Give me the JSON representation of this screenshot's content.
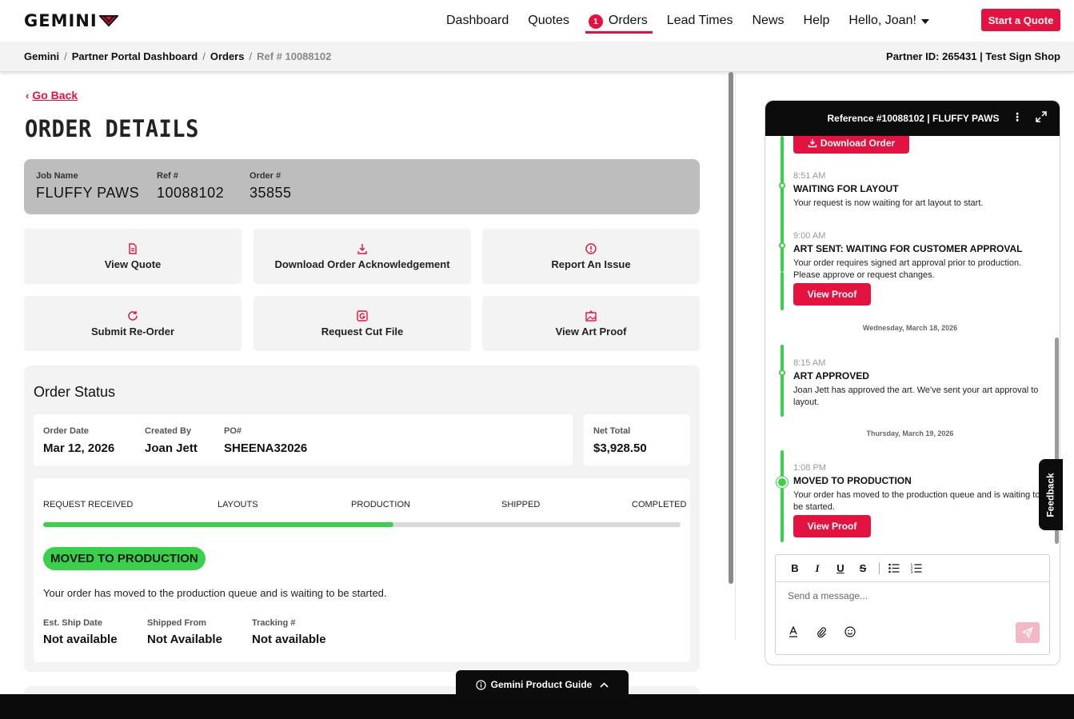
{
  "brand": {
    "name": "GEMINI",
    "accent": "#e4123f",
    "success": "#3bd04a"
  },
  "nav": {
    "links": [
      {
        "label": "Dashboard"
      },
      {
        "label": "Quotes"
      },
      {
        "label": "Orders",
        "badge": "1"
      },
      {
        "label": "Lead Times"
      },
      {
        "label": "News"
      },
      {
        "label": "Help"
      }
    ],
    "greeting": "Hello, Joan!",
    "cta": "Start a Quote"
  },
  "breadcrumb": {
    "items": [
      "Gemini",
      "Partner Portal Dashboard",
      "Orders",
      "Ref # 10088102"
    ],
    "partner": "Partner ID: 265431 | Test Sign Shop"
  },
  "page": {
    "back": "Go Back",
    "title": "Order Details"
  },
  "job": {
    "name_label": "Job Name",
    "name": "FLUFFY PAWS",
    "ref_label": "Ref #",
    "ref": "10088102",
    "order_label": "Order #",
    "order": "35855"
  },
  "actions": [
    {
      "label": "View Quote",
      "icon": "document-icon"
    },
    {
      "label": "Download Order Acknowledgement",
      "icon": "download-icon"
    },
    {
      "label": "Report An Issue",
      "icon": "alert-icon"
    },
    {
      "label": "Submit Re-Order",
      "icon": "refresh-icon"
    },
    {
      "label": "Request Cut File",
      "icon": "cut-file-icon"
    },
    {
      "label": "View Art Proof",
      "icon": "image-icon"
    }
  ],
  "status": {
    "title": "Order Status",
    "order_date_label": "Order Date",
    "order_date": "Mar 12, 2026",
    "created_by_label": "Created By",
    "created_by": "Joan Jett",
    "po_label": "PO#",
    "po": "SHEENA32026",
    "net_total_label": "Net Total",
    "net_total": "$3,928.50",
    "steps": [
      "REQUEST RECEIVED",
      "LAYOUTS",
      "PRODUCTION",
      "SHIPPED",
      "COMPLETED"
    ],
    "progress": 0.55,
    "current": "MOVED TO PRODUCTION",
    "description": "Your order has moved to the production queue and is waiting to be started.",
    "ship_date_label": "Est. Ship Date",
    "ship_date": "Not available",
    "shipped_from_label": "Shipped From",
    "shipped_from": "Not Available",
    "tracking_label": "Tracking #",
    "tracking": "Not available"
  },
  "chat": {
    "header": "Reference #10088102 | FLUFFY PAWS",
    "download_button": "Download Order",
    "events": [
      {
        "time": "8:51 AM",
        "title": "WAITING FOR LAYOUT",
        "desc": "Your request is now waiting for art layout to start."
      },
      {
        "time": "9:00 AM",
        "title": "ART SENT: WAITING FOR CUSTOMER APPROVAL",
        "desc": "Your order requires signed art approval prior to production. Please approve or request changes.",
        "button": "View Proof"
      },
      {
        "day": "Wednesday, March 18, 2026"
      },
      {
        "time": "8:15 AM",
        "title": "ART APPROVED",
        "desc": "Joan Jett has approved the art. We've sent your art approval to layout."
      },
      {
        "day": "Thursday, March 19, 2026"
      },
      {
        "time": "1:08 PM",
        "title": "MOVED TO PRODUCTION",
        "desc": "Your order has moved to the production queue and is waiting to be started.",
        "button": "View Proof"
      }
    ],
    "composer_placeholder": "Send a message..."
  },
  "feedback": "Feedback",
  "guide": "Gemini Product Guide"
}
